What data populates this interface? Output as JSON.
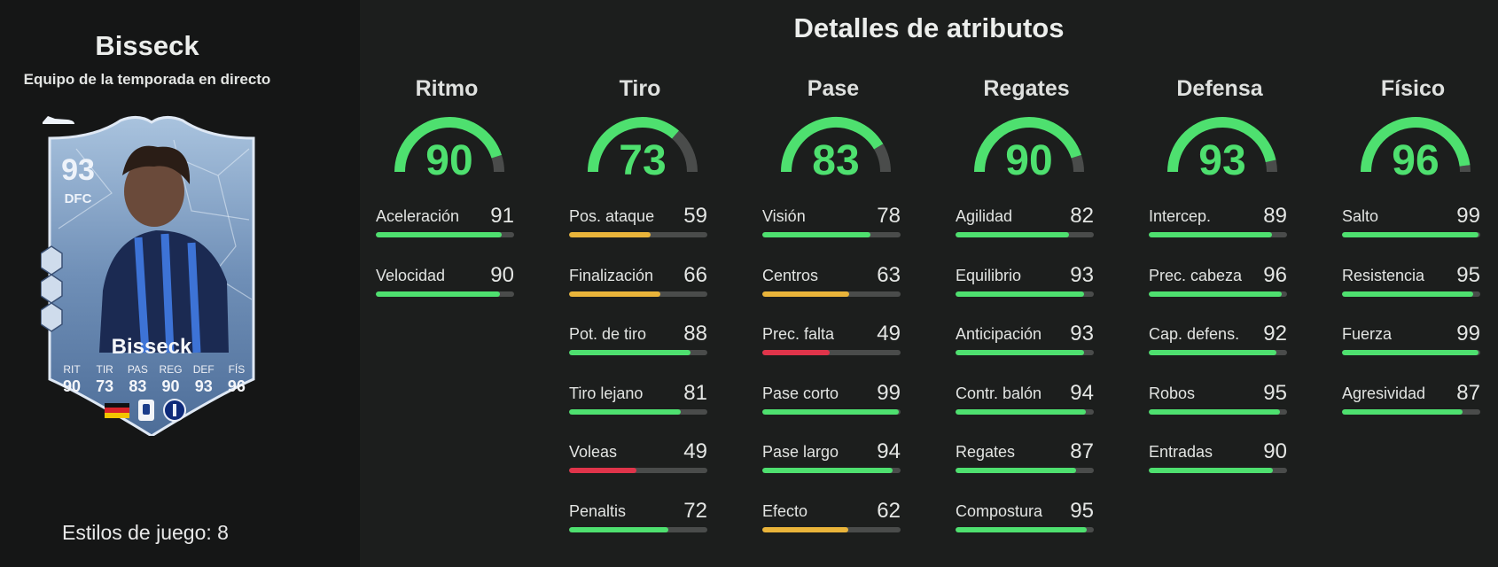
{
  "player": {
    "name": "Bisseck",
    "subtitle": "Equipo de la temporada en directo",
    "playstyles_label": "Estilos de juego: 8"
  },
  "card": {
    "rating": "93",
    "position": "DFC",
    "name": "Bisseck",
    "stat_labels": [
      "RIT",
      "TIR",
      "PAS",
      "REG",
      "DEF",
      "FÍS"
    ],
    "stat_values": [
      "90",
      "73",
      "83",
      "90",
      "93",
      "96"
    ]
  },
  "details_title": "Detalles de atributos",
  "colors": {
    "green": "#4ee06f",
    "yellow": "#e9b43a",
    "red": "#e0344a",
    "track": "#4a4c4b"
  },
  "groups": [
    {
      "name": "Ritmo",
      "value": 90,
      "stats": [
        {
          "label": "Aceleración",
          "value": 91
        },
        {
          "label": "Velocidad",
          "value": 90
        }
      ]
    },
    {
      "name": "Tiro",
      "value": 73,
      "stats": [
        {
          "label": "Pos. ataque",
          "value": 59
        },
        {
          "label": "Finalización",
          "value": 66
        },
        {
          "label": "Pot. de tiro",
          "value": 88
        },
        {
          "label": "Tiro lejano",
          "value": 81
        },
        {
          "label": "Voleas",
          "value": 49
        },
        {
          "label": "Penaltis",
          "value": 72
        }
      ]
    },
    {
      "name": "Pase",
      "value": 83,
      "stats": [
        {
          "label": "Visión",
          "value": 78
        },
        {
          "label": "Centros",
          "value": 63
        },
        {
          "label": "Prec. falta",
          "value": 49
        },
        {
          "label": "Pase corto",
          "value": 99
        },
        {
          "label": "Pase largo",
          "value": 94
        },
        {
          "label": "Efecto",
          "value": 62
        }
      ]
    },
    {
      "name": "Regates",
      "value": 90,
      "stats": [
        {
          "label": "Agilidad",
          "value": 82
        },
        {
          "label": "Equilibrio",
          "value": 93
        },
        {
          "label": "Anticipación",
          "value": 93
        },
        {
          "label": "Contr. balón",
          "value": 94
        },
        {
          "label": "Regates",
          "value": 87
        },
        {
          "label": "Compostura",
          "value": 95
        }
      ]
    },
    {
      "name": "Defensa",
      "value": 93,
      "stats": [
        {
          "label": "Intercep.",
          "value": 89
        },
        {
          "label": "Prec. cabeza",
          "value": 96
        },
        {
          "label": "Cap. defens.",
          "value": 92
        },
        {
          "label": "Robos",
          "value": 95
        },
        {
          "label": "Entradas",
          "value": 90
        }
      ]
    },
    {
      "name": "Físico",
      "value": 96,
      "stats": [
        {
          "label": "Salto",
          "value": 99
        },
        {
          "label": "Resistencia",
          "value": 95
        },
        {
          "label": "Fuerza",
          "value": 99
        },
        {
          "label": "Agresividad",
          "value": 87
        }
      ]
    }
  ]
}
